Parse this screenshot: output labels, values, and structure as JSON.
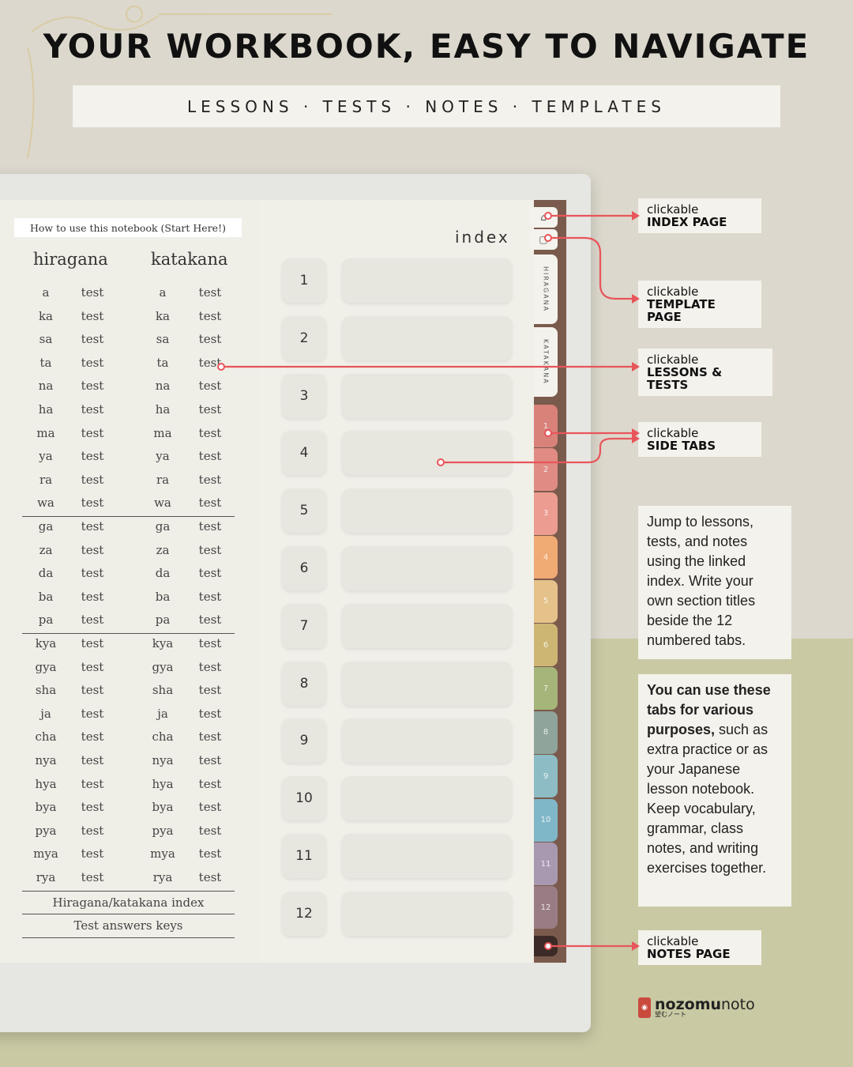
{
  "headline": "YOUR WORKBOOK, EASY TO NAVIGATE",
  "subheadline": "LESSONS · TESTS · NOTES · TEMPLATES",
  "notebook": {
    "how_to": "How to use this notebook (Start Here!)",
    "col_hiragana": "hiragana",
    "col_katakana": "katakana",
    "rows_group1": [
      "a",
      "ka",
      "sa",
      "ta",
      "na",
      "ha",
      "ma",
      "ya",
      "ra",
      "wa"
    ],
    "rows_group2": [
      "ga",
      "za",
      "da",
      "ba",
      "pa"
    ],
    "rows_group3": [
      "kya",
      "gya",
      "sha",
      "ja",
      "cha",
      "nya",
      "hya",
      "bya",
      "pya",
      "mya",
      "rya"
    ],
    "test_label": "test",
    "footer_index": "Hiragana/katakana index",
    "footer_answers": "Test answers keys",
    "index_title": "index",
    "index_numbers": [
      "1",
      "2",
      "3",
      "4",
      "5",
      "6",
      "7",
      "8",
      "9",
      "10",
      "11",
      "12"
    ]
  },
  "side_tabs": {
    "hiragana": "HIRAGANA",
    "katakana": "KATAKANA",
    "numbered": [
      "1",
      "2",
      "3",
      "4",
      "5",
      "6",
      "7",
      "8",
      "9",
      "10",
      "11",
      "12"
    ],
    "colors": [
      "#d9827a",
      "#e08c84",
      "#ec9c90",
      "#f0aa74",
      "#e4c28a",
      "#cdb574",
      "#a6b57a",
      "#8fa49a",
      "#8dbcc4",
      "#80b7c8",
      "#a899b0",
      "#9a7d84"
    ],
    "notes_color": "#3b2a25"
  },
  "callouts": {
    "index": {
      "line1": "clickable",
      "line2": "INDEX PAGE"
    },
    "template": {
      "line1": "clickable",
      "line2": "TEMPLATE PAGE"
    },
    "lessons": {
      "line1": "clickable",
      "line2": "LESSONS & TESTS"
    },
    "sidetabs": {
      "line1": "clickable",
      "line2": "SIDE TABS"
    },
    "notes": {
      "line1": "clickable",
      "line2": "NOTES PAGE"
    }
  },
  "description1": "Jump to lessons, tests, and notes using the linked index. Write your own section titles beside the 12 numbered tabs.",
  "description2_bold": "You can use these tabs for various purposes,",
  "description2_rest": " such as extra practice or as your Japanese lesson notebook. Keep vocabulary, grammar, class notes, and writing exercises together.",
  "brand": {
    "name_bold": "nozomu",
    "name_rest": "noto",
    "sub": "望むノート"
  },
  "accent_color": "#e8555a"
}
